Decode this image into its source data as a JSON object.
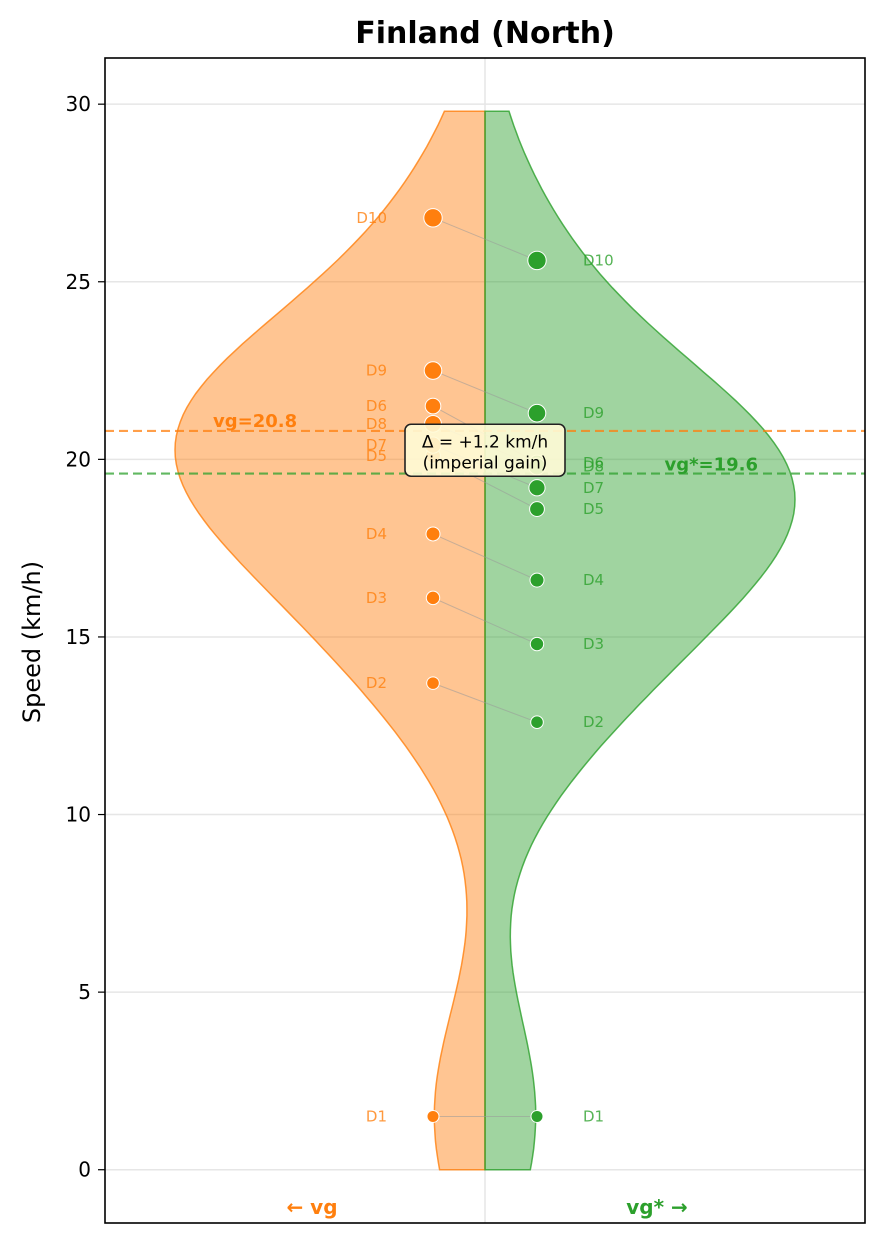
{
  "chart_data": {
    "type": "violin",
    "title": "Finland (North)",
    "ylabel": "Speed (km/h)",
    "xlabel": "",
    "ylim": [
      -1.5,
      31.3
    ],
    "yticks": [
      0,
      5,
      10,
      15,
      20,
      25,
      30
    ],
    "grid": true,
    "colors": {
      "vg": "#ff7f0e",
      "vg_star": "#2ca02c"
    },
    "left_side_label": "← vg",
    "right_side_label": "vg* →",
    "series": [
      {
        "name": "vg",
        "side": "left",
        "labels": [
          "D1",
          "D2",
          "D3",
          "D4",
          "D5",
          "D6",
          "D7",
          "D8",
          "D9",
          "D10"
        ],
        "values": [
          1.5,
          13.7,
          16.1,
          17.9,
          20.1,
          21.5,
          20.4,
          21.0,
          22.5,
          26.8
        ],
        "mean": 20.8,
        "mean_label": "vg=20.8"
      },
      {
        "name": "vg*",
        "side": "right",
        "labels": [
          "D1",
          "D2",
          "D3",
          "D4",
          "D5",
          "D6",
          "D7",
          "D8",
          "D9",
          "D10"
        ],
        "values": [
          1.5,
          12.6,
          14.8,
          16.6,
          18.6,
          19.9,
          19.2,
          19.8,
          21.3,
          25.6
        ],
        "mean": 19.6,
        "mean_label": "vg*=19.6"
      }
    ],
    "annotation": {
      "line1": "Δ = +1.2 km/h",
      "line2": "(imperial gain)"
    }
  }
}
